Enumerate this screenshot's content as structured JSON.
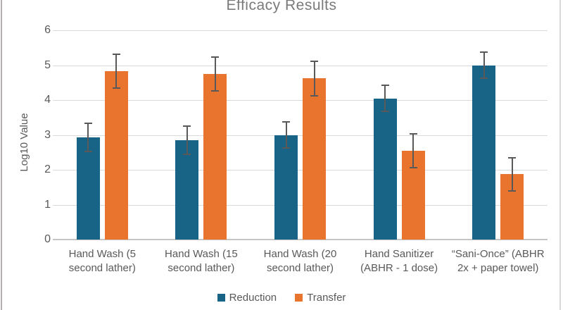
{
  "title": "Efficacy Results",
  "y_axis": {
    "label": "Log10 Value",
    "ticks": [
      "0",
      "1",
      "2",
      "3",
      "4",
      "5",
      "6"
    ],
    "min": 0,
    "max": 6
  },
  "legend": {
    "items": [
      {
        "label": "Reduction",
        "color": "#176487"
      },
      {
        "label": "Transfer",
        "color": "#e8742d"
      }
    ]
  },
  "colors": {
    "reduction_bar": "#176487",
    "transfer_bar": "#e8742d",
    "error_bar": "#595959",
    "gridline": "#d9d9d9",
    "axis_text": "#595959",
    "title_text": "#7a7a7a"
  },
  "chart_data": {
    "type": "bar",
    "title": "Efficacy Results",
    "xlabel": "",
    "ylabel": "Log10 Value",
    "ylim": [
      0,
      6
    ],
    "grid": true,
    "legend_position": "bottom",
    "categories": [
      "Hand Wash (5 second lather)",
      "Hand Wash (15 second lather)",
      "Hand Wash (20 second lather)",
      "Hand Sanitizer (ABHR - 1 dose)",
      "“Sani-Once” (ABHR 2x + paper towel)"
    ],
    "series": [
      {
        "name": "Reduction",
        "color": "#176487",
        "values": [
          2.93,
          2.85,
          3.0,
          4.05,
          5.0
        ],
        "errors": [
          0.42,
          0.42,
          0.4,
          0.4,
          0.4
        ]
      },
      {
        "name": "Transfer",
        "color": "#e8742d",
        "values": [
          4.83,
          4.75,
          4.62,
          2.55,
          1.87
        ],
        "errors": [
          0.5,
          0.5,
          0.51,
          0.51,
          0.5
        ]
      }
    ]
  }
}
